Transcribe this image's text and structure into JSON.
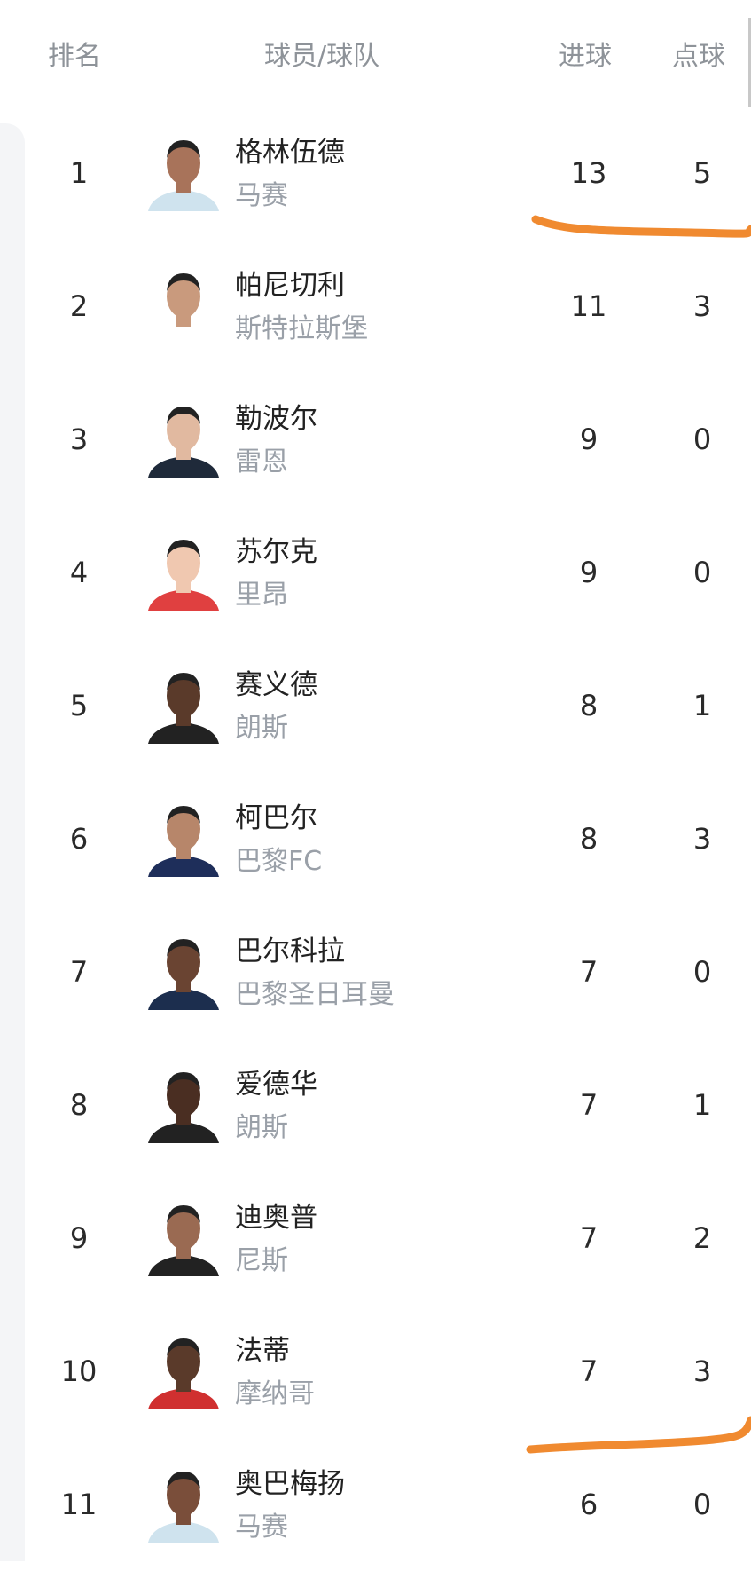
{
  "header": {
    "rank": "排名",
    "player_team": "球员/球队",
    "goals": "进球",
    "penalties": "点球"
  },
  "rows": [
    {
      "rank": "1",
      "name": "格林伍德",
      "team": "马赛",
      "goals": "13",
      "penalties": "5",
      "skin": "#a8735a",
      "kit": "#cfe3ee"
    },
    {
      "rank": "2",
      "name": "帕尼切利",
      "team": "斯特拉斯堡",
      "goals": "11",
      "penalties": "3",
      "skin": "#c99a7d",
      "kit": "#ffffff"
    },
    {
      "rank": "3",
      "name": "勒波尔",
      "team": "雷恩",
      "goals": "9",
      "penalties": "0",
      "skin": "#e1b9a0",
      "kit": "#1f2a3a"
    },
    {
      "rank": "4",
      "name": "苏尔克",
      "team": "里昂",
      "goals": "9",
      "penalties": "0",
      "skin": "#f0c8b0",
      "kit": "#e04040"
    },
    {
      "rank": "5",
      "name": "赛义德",
      "team": "朗斯",
      "goals": "8",
      "penalties": "1",
      "skin": "#5a3a2a",
      "kit": "#222222"
    },
    {
      "rank": "6",
      "name": "柯巴尔",
      "team": "巴黎FC",
      "goals": "8",
      "penalties": "3",
      "skin": "#b7866a",
      "kit": "#1e2e5a"
    },
    {
      "rank": "7",
      "name": "巴尔科拉",
      "team": "巴黎圣日耳曼",
      "goals": "7",
      "penalties": "0",
      "skin": "#6a4432",
      "kit": "#1c2e4e"
    },
    {
      "rank": "8",
      "name": "爱德华",
      "team": "朗斯",
      "goals": "7",
      "penalties": "1",
      "skin": "#4a2e22",
      "kit": "#222222"
    },
    {
      "rank": "9",
      "name": "迪奥普",
      "team": "尼斯",
      "goals": "7",
      "penalties": "2",
      "skin": "#9a6a52",
      "kit": "#222222"
    },
    {
      "rank": "10",
      "name": "法蒂",
      "team": "摩纳哥",
      "goals": "7",
      "penalties": "3",
      "skin": "#5a3a2a",
      "kit": "#d03030"
    },
    {
      "rank": "11",
      "name": "奥巴梅扬",
      "team": "马赛",
      "goals": "6",
      "penalties": "0",
      "skin": "#7a4e3a",
      "kit": "#cfe3ee"
    }
  ],
  "colors": {
    "annotation": "#f08a30",
    "header_text": "#8e9399",
    "team_text": "#9aa0a8"
  }
}
